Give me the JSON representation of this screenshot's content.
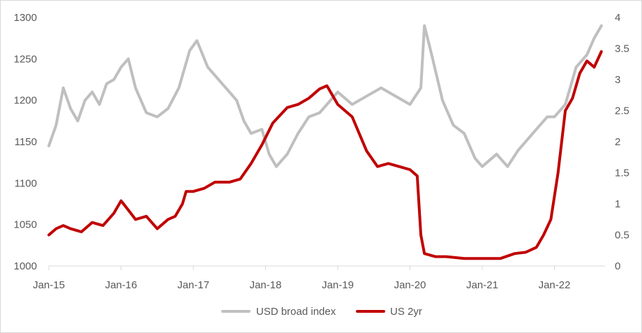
{
  "chart_data": {
    "type": "line",
    "title": "",
    "xlabel": "",
    "ylabel_left": "",
    "ylabel_right": "",
    "x_ticks": [
      "Jan-15",
      "Jan-16",
      "Jan-17",
      "Jan-18",
      "Jan-19",
      "Jan-20",
      "Jan-21",
      "Jan-22"
    ],
    "x_range": [
      2015.0,
      2022.7
    ],
    "y_left": {
      "min": 1000,
      "max": 1300,
      "ticks": [
        "1000",
        "1050",
        "1100",
        "1150",
        "1200",
        "1250",
        "1300"
      ]
    },
    "y_right": {
      "min": 0,
      "max": 4,
      "ticks": [
        "0",
        "0.5",
        "1",
        "1.5",
        "2",
        "2.5",
        "3",
        "3.5",
        "4"
      ]
    },
    "grid": false,
    "legend_position": "bottom",
    "series": [
      {
        "name": "USD broad index",
        "axis": "left",
        "color": "#BFBFBF",
        "x": [
          2015.0,
          2015.1,
          2015.2,
          2015.3,
          2015.4,
          2015.5,
          2015.6,
          2015.7,
          2015.8,
          2015.9,
          2016.0,
          2016.1,
          2016.2,
          2016.35,
          2016.5,
          2016.65,
          2016.8,
          2016.95,
          2017.05,
          2017.2,
          2017.4,
          2017.6,
          2017.7,
          2017.8,
          2017.95,
          2018.05,
          2018.15,
          2018.3,
          2018.45,
          2018.6,
          2018.75,
          2018.85,
          2019.0,
          2019.2,
          2019.4,
          2019.6,
          2019.8,
          2020.0,
          2020.15,
          2020.2,
          2020.3,
          2020.45,
          2020.6,
          2020.75,
          2020.9,
          2021.0,
          2021.2,
          2021.35,
          2021.5,
          2021.7,
          2021.9,
          2022.0,
          2022.15,
          2022.3,
          2022.45,
          2022.55,
          2022.65
        ],
        "values": [
          1145,
          1170,
          1215,
          1190,
          1175,
          1200,
          1210,
          1195,
          1220,
          1225,
          1240,
          1250,
          1215,
          1185,
          1180,
          1190,
          1215,
          1260,
          1272,
          1240,
          1220,
          1200,
          1175,
          1160,
          1165,
          1135,
          1120,
          1135,
          1160,
          1180,
          1185,
          1195,
          1210,
          1195,
          1205,
          1215,
          1205,
          1195,
          1215,
          1290,
          1255,
          1200,
          1170,
          1160,
          1130,
          1120,
          1135,
          1120,
          1140,
          1160,
          1180,
          1180,
          1195,
          1240,
          1255,
          1275,
          1290
        ]
      },
      {
        "name": "US 2yr",
        "axis": "right",
        "color": "#C00000",
        "x": [
          2015.0,
          2015.1,
          2015.2,
          2015.3,
          2015.45,
          2015.6,
          2015.75,
          2015.9,
          2016.0,
          2016.1,
          2016.2,
          2016.35,
          2016.5,
          2016.65,
          2016.75,
          2016.85,
          2016.9,
          2017.0,
          2017.15,
          2017.3,
          2017.5,
          2017.65,
          2017.8,
          2017.95,
          2018.1,
          2018.3,
          2018.45,
          2018.6,
          2018.75,
          2018.85,
          2019.0,
          2019.2,
          2019.4,
          2019.55,
          2019.7,
          2019.85,
          2020.0,
          2020.1,
          2020.15,
          2020.2,
          2020.35,
          2020.5,
          2020.75,
          2021.0,
          2021.25,
          2021.45,
          2021.6,
          2021.75,
          2021.85,
          2021.95,
          2022.05,
          2022.15,
          2022.25,
          2022.35,
          2022.45,
          2022.55,
          2022.65
        ],
        "values": [
          0.5,
          0.6,
          0.65,
          0.6,
          0.55,
          0.7,
          0.65,
          0.85,
          1.05,
          0.9,
          0.75,
          0.8,
          0.6,
          0.75,
          0.8,
          1.0,
          1.2,
          1.2,
          1.25,
          1.35,
          1.35,
          1.4,
          1.65,
          1.95,
          2.3,
          2.55,
          2.6,
          2.7,
          2.85,
          2.9,
          2.6,
          2.4,
          1.85,
          1.6,
          1.65,
          1.6,
          1.55,
          1.45,
          0.5,
          0.2,
          0.15,
          0.15,
          0.12,
          0.12,
          0.12,
          0.2,
          0.22,
          0.3,
          0.5,
          0.75,
          1.5,
          2.5,
          2.7,
          3.1,
          3.3,
          3.2,
          3.45
        ]
      }
    ]
  }
}
